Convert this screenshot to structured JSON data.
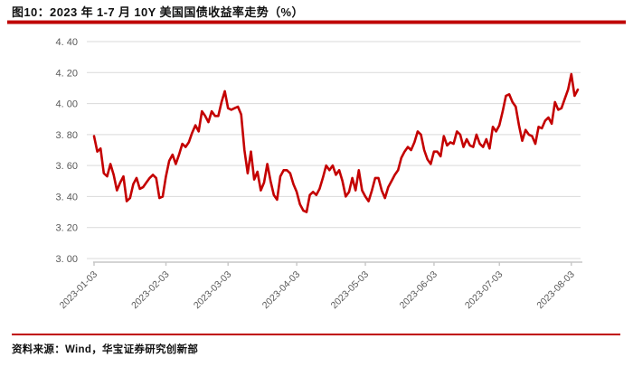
{
  "figure": {
    "title": "图10：2023 年 1-7 月 10Y 美国国债收益率走势（%）"
  },
  "footer": {
    "source": "资料来源：Wind，华宝证券研究创新部"
  },
  "colors": {
    "line": "#C40000",
    "accent_bar": "#C00000",
    "grid": "#D9D9D9",
    "axis": "#C6C6C6",
    "tick_label": "#595959",
    "title_text": "#111111"
  },
  "chart_data": {
    "type": "line",
    "title": "2023 年 1-7 月 10Y 美国国债收益率走势（%）",
    "xlabel": "",
    "ylabel": "",
    "ylim": [
      3.0,
      4.4
    ],
    "y_tick_step": 0.2,
    "grid": true,
    "legend": false,
    "y_ticks": [
      {
        "label": "4. 40",
        "value": 4.4
      },
      {
        "label": "4. 20",
        "value": 4.2
      },
      {
        "label": "4. 00",
        "value": 4.0
      },
      {
        "label": "3. 80",
        "value": 3.8
      },
      {
        "label": "3. 60",
        "value": 3.6
      },
      {
        "label": "3. 40",
        "value": 3.4
      },
      {
        "label": "3. 20",
        "value": 3.2
      },
      {
        "label": "3. 00",
        "value": 3.0
      }
    ],
    "x_ticks": [
      {
        "label": "2023-01-03",
        "index": 0
      },
      {
        "label": "2023-02-03",
        "index": 22
      },
      {
        "label": "2023-03-03",
        "index": 41
      },
      {
        "label": "2023-04-03",
        "index": 62
      },
      {
        "label": "2023-05-03",
        "index": 83
      },
      {
        "label": "2023-06-03",
        "index": 104
      },
      {
        "label": "2023-07-03",
        "index": 124
      },
      {
        "label": "2023-08-03",
        "index": 146
      }
    ],
    "series_name": "10Y 美国国债收益率",
    "values": [
      3.79,
      3.69,
      3.71,
      3.55,
      3.53,
      3.61,
      3.54,
      3.44,
      3.49,
      3.53,
      3.37,
      3.39,
      3.48,
      3.52,
      3.45,
      3.46,
      3.49,
      3.52,
      3.54,
      3.52,
      3.39,
      3.4,
      3.53,
      3.63,
      3.67,
      3.61,
      3.67,
      3.74,
      3.72,
      3.75,
      3.81,
      3.86,
      3.82,
      3.95,
      3.92,
      3.88,
      3.95,
      3.92,
      3.92,
      4.01,
      4.08,
      3.97,
      3.96,
      3.97,
      3.98,
      3.93,
      3.7,
      3.55,
      3.69,
      3.51,
      3.56,
      3.44,
      3.49,
      3.61,
      3.5,
      3.41,
      3.38,
      3.53,
      3.57,
      3.57,
      3.55,
      3.48,
      3.43,
      3.35,
      3.31,
      3.3,
      3.41,
      3.43,
      3.41,
      3.45,
      3.52,
      3.6,
      3.57,
      3.6,
      3.54,
      3.57,
      3.5,
      3.4,
      3.43,
      3.52,
      3.44,
      3.57,
      3.44,
      3.4,
      3.37,
      3.44,
      3.52,
      3.52,
      3.44,
      3.39,
      3.46,
      3.5,
      3.54,
      3.57,
      3.65,
      3.69,
      3.72,
      3.7,
      3.75,
      3.82,
      3.8,
      3.7,
      3.64,
      3.61,
      3.69,
      3.69,
      3.66,
      3.79,
      3.73,
      3.75,
      3.74,
      3.82,
      3.8,
      3.72,
      3.77,
      3.73,
      3.72,
      3.8,
      3.74,
      3.72,
      3.77,
      3.71,
      3.85,
      3.82,
      3.86,
      3.95,
      4.05,
      4.06,
      4.01,
      3.98,
      3.86,
      3.76,
      3.83,
      3.8,
      3.79,
      3.74,
      3.85,
      3.84,
      3.89,
      3.91,
      3.87,
      4.01,
      3.96,
      3.97,
      4.03,
      4.09,
      4.19,
      4.05,
      4.09
    ]
  }
}
